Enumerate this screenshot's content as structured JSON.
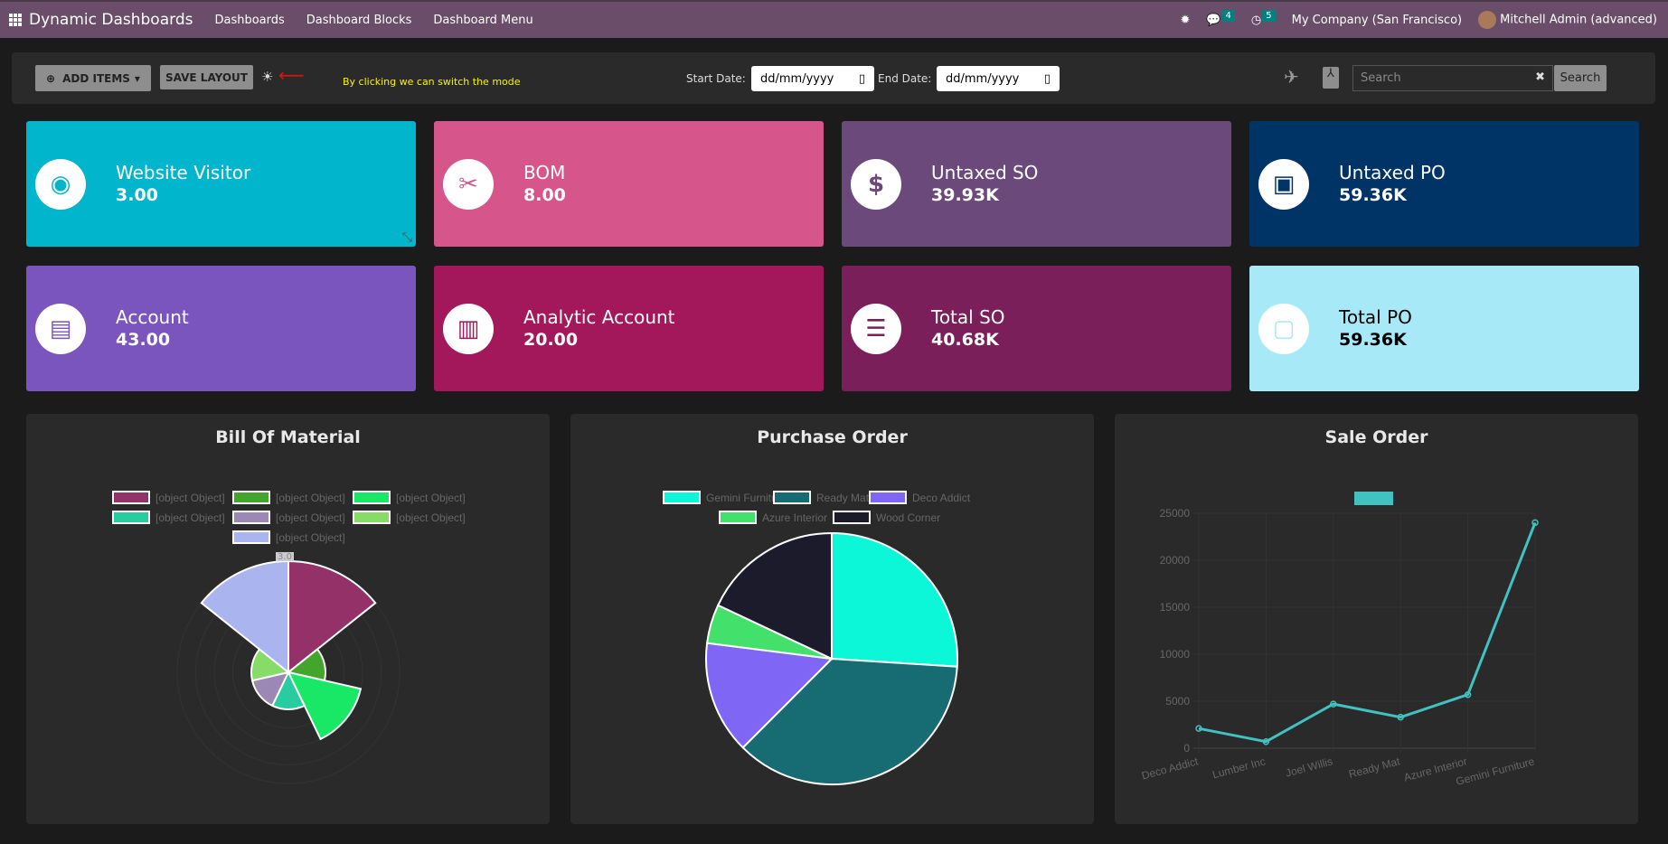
{
  "nav": {
    "brand": "Dynamic Dashboards",
    "menus": [
      "Dashboards",
      "Dashboard Blocks",
      "Dashboard Menu"
    ],
    "messages_count": "4",
    "activities_count": "5",
    "company": "My Company (San Francisco)",
    "user": "Mitchell Admin (advanced)"
  },
  "toolbar": {
    "add_items": "ADD ITEMS",
    "save_layout": "SAVE LAYOUT",
    "mode_hint": "By clicking we can switch the mode",
    "start_label": "Start Date:",
    "end_label": "End Date:",
    "start_value": "dd/mm/yyyy",
    "end_value": "dd/mm/yyyy",
    "search_placeholder": "Search",
    "search_button": "Search"
  },
  "cards": [
    {
      "title": "Website Visitor",
      "value": "3.00",
      "color": "#00b5cc",
      "icon": "eye-icon"
    },
    {
      "title": "BOM",
      "value": "8.00",
      "color": "#d6568c",
      "icon": "tools-icon"
    },
    {
      "title": "Untaxed SO",
      "value": "39.93K",
      "color": "#6b4a7b",
      "icon": "dollar-coin-icon"
    },
    {
      "title": "Untaxed PO",
      "value": "59.36K",
      "color": "#003366",
      "icon": "money-icon"
    },
    {
      "title": "Account",
      "value": "43.00",
      "color": "#7a55bd",
      "icon": "id-card-icon"
    },
    {
      "title": "Analytic Account",
      "value": "20.00",
      "color": "#a3185b",
      "icon": "bar-chart-icon"
    },
    {
      "title": "Total SO",
      "value": "40.68K",
      "color": "#7a1f5a",
      "icon": "list-icon"
    },
    {
      "title": "Total PO",
      "value": "59.36K",
      "color": "#a8e9f7",
      "icon": "shopping-bag-icon"
    }
  ],
  "chart_data": [
    {
      "type": "polarArea",
      "title": "Bill Of Material",
      "tick_label": "3.0",
      "rmax": 3,
      "series": [
        {
          "name": "[object Object]",
          "value": 3,
          "color": "#943169"
        },
        {
          "name": "[object Object]",
          "value": 1,
          "color": "#44a52d"
        },
        {
          "name": "[object Object]",
          "value": 2,
          "color": "#18e865"
        },
        {
          "name": "[object Object]",
          "value": 1,
          "color": "#28cc9e"
        },
        {
          "name": "[object Object]",
          "value": 1,
          "color": "#9b88b4"
        },
        {
          "name": "[object Object]",
          "value": 1,
          "color": "#86dc66"
        },
        {
          "name": "[object Object]",
          "value": 3,
          "color": "#aab4ee"
        }
      ]
    },
    {
      "type": "pie",
      "title": "Purchase Order",
      "series": [
        {
          "name": "Gemini Furniture",
          "value": 26,
          "color": "#0cf6d8"
        },
        {
          "name": "Ready Mat",
          "value": 36.5,
          "color": "#176b73"
        },
        {
          "name": "Deco Addict",
          "value": 14.5,
          "color": "#7f66f5"
        },
        {
          "name": "Azure Interior",
          "value": 5,
          "color": "#44e06c"
        },
        {
          "name": "Wood Corner",
          "value": 18,
          "color": "#1c1b2b"
        }
      ]
    },
    {
      "type": "line",
      "title": "Sale Order",
      "categories": [
        "Deco Addict",
        "Lumber Inc",
        "Joel Willis",
        "Ready Mat",
        "Azure Interior",
        "Gemini Furniture"
      ],
      "values": [
        2100,
        700,
        4700,
        3300,
        5700,
        24000
      ],
      "ylim": [
        0,
        25000
      ],
      "yticks": [
        "0",
        "5000",
        "10000",
        "15000",
        "20000",
        "25000"
      ],
      "color": "#41c1c0",
      "grid": true
    }
  ]
}
